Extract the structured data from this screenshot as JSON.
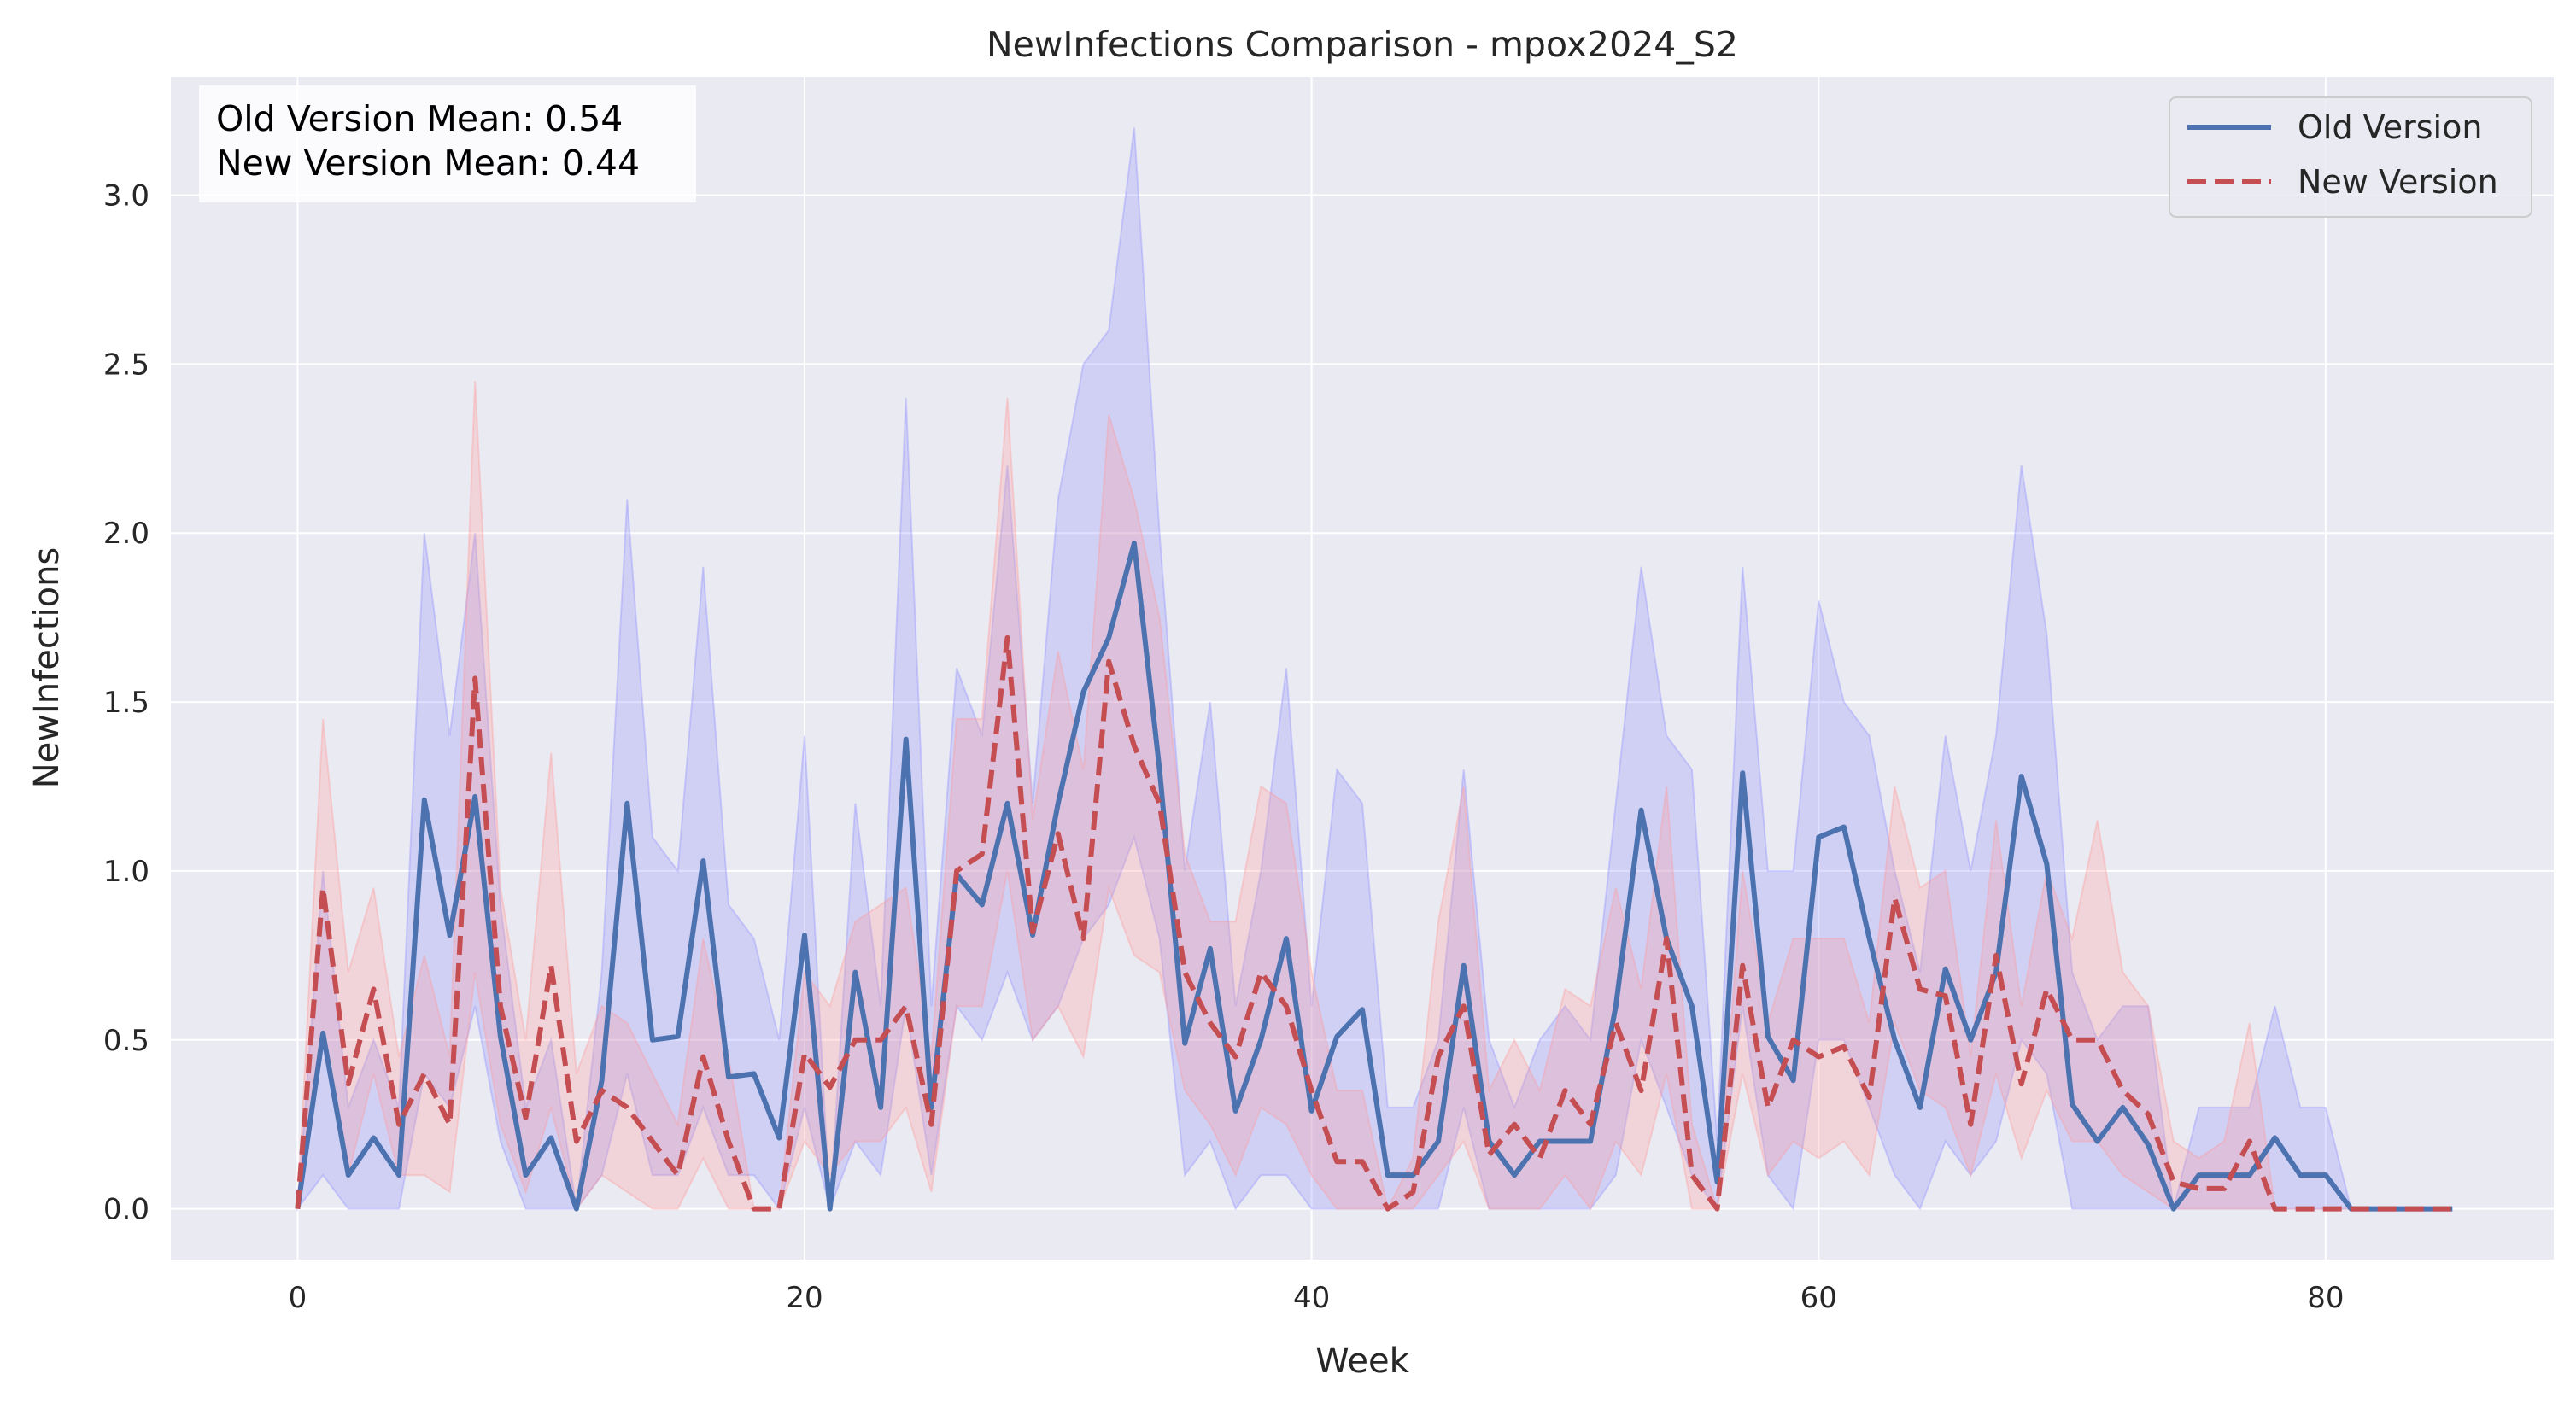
{
  "chart_data": {
    "type": "line",
    "title": "NewInfections Comparison - mpox2024_S2",
    "xlabel": "Week",
    "ylabel": "NewInfections",
    "xlim": [
      -5,
      89
    ],
    "ylim": [
      -0.15,
      3.35
    ],
    "x_ticks": [
      0,
      20,
      40,
      60,
      80
    ],
    "y_ticks": [
      0.0,
      0.5,
      1.0,
      1.5,
      2.0,
      2.5,
      3.0
    ],
    "x_tick_labels": [
      "0",
      "20",
      "40",
      "60",
      "80"
    ],
    "y_tick_labels": [
      "0.0",
      "0.5",
      "1.0",
      "1.5",
      "2.0",
      "2.5",
      "3.0"
    ],
    "grid": true,
    "legend_position": "top-right",
    "stats_box": {
      "old_mean": "Old Version Mean: 0.54",
      "new_mean": "New Version Mean: 0.44"
    },
    "colors": {
      "background": "#eaeaf2",
      "grid": "#ffffff",
      "old_line": "#4c72b0",
      "new_line": "#c44e52",
      "old_band": "#8c8cff",
      "new_band": "#ff9999"
    },
    "x": [
      0,
      1,
      2,
      3,
      4,
      5,
      6,
      7,
      8,
      9,
      10,
      11,
      12,
      13,
      14,
      15,
      16,
      17,
      18,
      19,
      20,
      21,
      22,
      23,
      24,
      25,
      26,
      27,
      28,
      29,
      30,
      31,
      32,
      33,
      34,
      35,
      36,
      37,
      38,
      39,
      40,
      41,
      42,
      43,
      44,
      45,
      46,
      47,
      48,
      49,
      50,
      51,
      52,
      53,
      54,
      55,
      56,
      57,
      58,
      59,
      60,
      61,
      62,
      63,
      64,
      65,
      66,
      67,
      68,
      69,
      70,
      71,
      72,
      73,
      74,
      75,
      76,
      77,
      78,
      79,
      80,
      81,
      82,
      83,
      84,
      85
    ],
    "series": [
      {
        "name": "Old Version",
        "style": "solid",
        "values": [
          0,
          0.52,
          0.1,
          0.21,
          0.1,
          1.21,
          0.81,
          1.22,
          0.51,
          0.1,
          0.21,
          0,
          0.38,
          1.2,
          0.5,
          0.51,
          1.03,
          0.39,
          0.4,
          0.21,
          0.81,
          0,
          0.7,
          0.3,
          1.39,
          0.3,
          0.99,
          0.9,
          1.2,
          0.81,
          1.2,
          1.53,
          1.69,
          1.97,
          1.3,
          0.49,
          0.77,
          0.29,
          0.5,
          0.8,
          0.29,
          0.51,
          0.59,
          0.1,
          0.1,
          0.2,
          0.72,
          0.2,
          0.1,
          0.2,
          0.2,
          0.2,
          0.6,
          1.18,
          0.8,
          0.6,
          0.08,
          1.29,
          0.51,
          0.38,
          1.1,
          1.13,
          0.8,
          0.5,
          0.3,
          0.71,
          0.5,
          0.7,
          1.28,
          1.02,
          0.31,
          0.2,
          0.3,
          0.19,
          0,
          0.1,
          0.1,
          0.1,
          0.21,
          0.1,
          0.1,
          0,
          0,
          0,
          0,
          0
        ],
        "lower": [
          0,
          0.1,
          0,
          0,
          0,
          0.4,
          0.3,
          0.6,
          0.2,
          0,
          0,
          0,
          0.1,
          0.4,
          0.1,
          0.1,
          0.3,
          0.1,
          0.1,
          0,
          0.3,
          0,
          0.2,
          0.1,
          0.6,
          0.1,
          0.6,
          0.5,
          0.7,
          0.5,
          0.6,
          0.8,
          0.9,
          1.1,
          0.8,
          0.1,
          0.2,
          0,
          0.1,
          0.1,
          0,
          0,
          0,
          0,
          0,
          0,
          0.3,
          0,
          0,
          0,
          0,
          0,
          0.1,
          0.5,
          0.3,
          0.1,
          0,
          0.6,
          0.1,
          0,
          0.5,
          0.5,
          0.3,
          0.1,
          0,
          0.2,
          0.1,
          0.2,
          0.5,
          0.4,
          0,
          0,
          0,
          0,
          0,
          0,
          0,
          0,
          0,
          0,
          0,
          0,
          0,
          0,
          0,
          0
        ],
        "upper": [
          0,
          1.0,
          0.3,
          0.5,
          0.3,
          2.0,
          1.4,
          2.0,
          0.9,
          0.3,
          0.5,
          0,
          0.7,
          2.1,
          1.1,
          1.0,
          1.9,
          0.9,
          0.8,
          0.5,
          1.4,
          0,
          1.2,
          0.6,
          2.4,
          0.6,
          1.6,
          1.4,
          2.2,
          1.2,
          2.1,
          2.5,
          2.6,
          3.2,
          2.0,
          1.0,
          1.5,
          0.6,
          1.0,
          1.6,
          0.6,
          1.3,
          1.2,
          0.3,
          0.3,
          0.5,
          1.3,
          0.5,
          0.3,
          0.5,
          0.6,
          0.5,
          1.2,
          1.9,
          1.4,
          1.3,
          0.2,
          1.9,
          1.0,
          1.0,
          1.8,
          1.5,
          1.4,
          1.0,
          0.7,
          1.4,
          1.0,
          1.4,
          2.2,
          1.7,
          0.7,
          0.5,
          0.6,
          0.6,
          0,
          0.3,
          0.3,
          0.3,
          0.6,
          0.3,
          0.3,
          0,
          0,
          0,
          0,
          0
        ]
      },
      {
        "name": "New Version",
        "style": "dashed",
        "values": [
          0,
          0.95,
          0.37,
          0.65,
          0.25,
          0.4,
          0.25,
          1.57,
          0.6,
          0.27,
          0.72,
          0.2,
          0.35,
          0.3,
          0.2,
          0.1,
          0.45,
          0.2,
          0,
          0,
          0.46,
          0.36,
          0.5,
          0.5,
          0.6,
          0.25,
          1.0,
          1.05,
          1.69,
          0.82,
          1.11,
          0.8,
          1.62,
          1.37,
          1.2,
          0.7,
          0.55,
          0.45,
          0.7,
          0.6,
          0.35,
          0.14,
          0.14,
          0,
          0.05,
          0.45,
          0.6,
          0.16,
          0.25,
          0.15,
          0.35,
          0.25,
          0.55,
          0.35,
          0.8,
          0.1,
          0,
          0.72,
          0.3,
          0.5,
          0.45,
          0.48,
          0.33,
          0.92,
          0.65,
          0.63,
          0.25,
          0.75,
          0.37,
          0.65,
          0.5,
          0.5,
          0.35,
          0.28,
          0.08,
          0.06,
          0.06,
          0.2,
          0,
          0,
          0,
          0,
          0,
          0,
          0,
          0
        ],
        "lower": [
          0,
          0.5,
          0.1,
          0.4,
          0.1,
          0.1,
          0.05,
          0.7,
          0.25,
          0.05,
          0.3,
          0,
          0.1,
          0.05,
          0,
          0,
          0.15,
          0,
          0,
          0,
          0.2,
          0.1,
          0.2,
          0.2,
          0.3,
          0.05,
          0.6,
          0.6,
          1.0,
          0.5,
          0.6,
          0.45,
          0.95,
          0.75,
          0.7,
          0.35,
          0.25,
          0.1,
          0.3,
          0.25,
          0.1,
          0,
          0,
          0,
          0,
          0.1,
          0.2,
          0,
          0,
          0,
          0.1,
          0,
          0.2,
          0.1,
          0.4,
          0,
          0,
          0.4,
          0.1,
          0.2,
          0.15,
          0.2,
          0.1,
          0.55,
          0.35,
          0.3,
          0.1,
          0.4,
          0.15,
          0.35,
          0.2,
          0.2,
          0.1,
          0.05,
          0,
          0,
          0,
          0,
          0,
          0,
          0,
          0,
          0,
          0,
          0,
          0
        ],
        "upper": [
          0,
          1.45,
          0.7,
          0.95,
          0.45,
          0.75,
          0.45,
          2.45,
          0.95,
          0.5,
          1.35,
          0.4,
          0.6,
          0.55,
          0.4,
          0.25,
          0.8,
          0.45,
          0,
          0,
          0.7,
          0.6,
          0.85,
          0.9,
          0.95,
          0.45,
          1.45,
          1.45,
          2.4,
          1.15,
          1.65,
          1.3,
          2.35,
          2.1,
          1.75,
          1.05,
          0.85,
          0.85,
          1.25,
          1.2,
          0.7,
          0.35,
          0.35,
          0,
          0.15,
          0.85,
          1.25,
          0.35,
          0.5,
          0.35,
          0.65,
          0.6,
          0.95,
          0.65,
          1.25,
          0.25,
          0,
          1.0,
          0.55,
          0.8,
          0.8,
          0.8,
          0.55,
          1.25,
          0.95,
          1.0,
          0.45,
          1.15,
          0.6,
          1.0,
          0.8,
          1.15,
          0.7,
          0.6,
          0.2,
          0.15,
          0.2,
          0.55,
          0,
          0,
          0,
          0,
          0,
          0,
          0,
          0
        ]
      }
    ]
  }
}
